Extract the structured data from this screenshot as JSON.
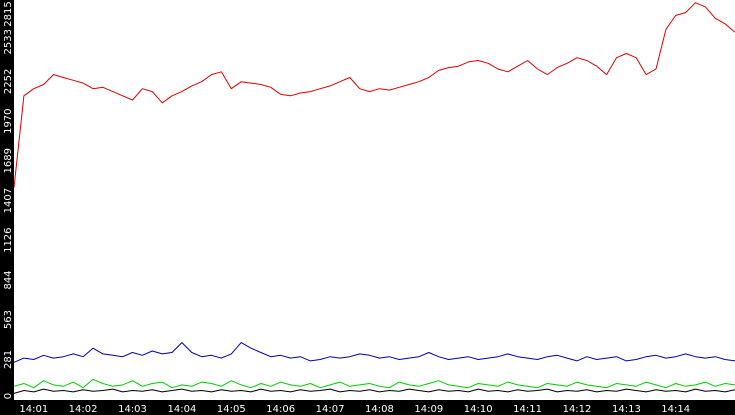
{
  "chart_data": {
    "type": "line",
    "title": "",
    "xlabel": "",
    "ylabel": "",
    "ylim": [
      0,
      2815
    ],
    "xlim": [
      0.6,
      15.2
    ],
    "grid": false,
    "legend": "none",
    "colors": {
      "background": "#ffffff",
      "axis_band": "#000000",
      "tick_text": "#ffffff"
    },
    "x_ticks": [
      "14:01",
      "14:02",
      "14:03",
      "14:04",
      "14:05",
      "14:06",
      "14:07",
      "14:08",
      "14:09",
      "14:10",
      "14:11",
      "14:12",
      "14:13",
      "14:14"
    ],
    "y_ticks": [
      "0",
      "281",
      "563",
      "844",
      "1126",
      "1407",
      "1689",
      "1970",
      "2252",
      "2533",
      "2815"
    ],
    "y_tick_values": [
      0,
      281,
      563,
      844,
      1126,
      1407,
      1689,
      1970,
      2252,
      2533,
      2815
    ],
    "series": [
      {
        "color": "#dd0000",
        "x": [
          0.6,
          0.8,
          1.0,
          1.2,
          1.4,
          1.6,
          1.8,
          2.0,
          2.2,
          2.4,
          2.6,
          2.8,
          3.0,
          3.2,
          3.4,
          3.6,
          3.8,
          4.0,
          4.2,
          4.4,
          4.6,
          4.8,
          5.0,
          5.2,
          5.4,
          5.6,
          5.8,
          6.0,
          6.2,
          6.4,
          6.6,
          6.8,
          7.0,
          7.2,
          7.4,
          7.6,
          7.8,
          8.0,
          8.2,
          8.4,
          8.6,
          8.8,
          9.0,
          9.2,
          9.4,
          9.6,
          9.8,
          10.0,
          10.2,
          10.4,
          10.6,
          10.8,
          11.0,
          11.2,
          11.4,
          11.6,
          11.8,
          12.0,
          12.2,
          12.4,
          12.6,
          12.8,
          13.0,
          13.2,
          13.4,
          13.6,
          13.8,
          14.0,
          14.2,
          14.4,
          14.6,
          14.8,
          15.0,
          15.2
        ],
        "values": [
          1500,
          2150,
          2200,
          2230,
          2300,
          2280,
          2260,
          2240,
          2200,
          2210,
          2180,
          2150,
          2120,
          2200,
          2180,
          2100,
          2150,
          2180,
          2220,
          2250,
          2300,
          2320,
          2200,
          2250,
          2240,
          2230,
          2210,
          2160,
          2150,
          2170,
          2180,
          2200,
          2220,
          2250,
          2280,
          2200,
          2180,
          2200,
          2190,
          2210,
          2230,
          2250,
          2280,
          2330,
          2350,
          2360,
          2390,
          2400,
          2380,
          2340,
          2320,
          2360,
          2400,
          2340,
          2300,
          2350,
          2380,
          2420,
          2400,
          2360,
          2300,
          2420,
          2450,
          2420,
          2300,
          2340,
          2620,
          2720,
          2740,
          2810,
          2780,
          2700,
          2660,
          2600
        ]
      },
      {
        "color": "#0000aa",
        "x": [
          0.6,
          0.8,
          1.0,
          1.2,
          1.4,
          1.6,
          1.8,
          2.0,
          2.2,
          2.4,
          2.6,
          2.8,
          3.0,
          3.2,
          3.4,
          3.6,
          3.8,
          4.0,
          4.2,
          4.4,
          4.6,
          4.8,
          5.0,
          5.2,
          5.4,
          5.6,
          5.8,
          6.0,
          6.2,
          6.4,
          6.6,
          6.8,
          7.0,
          7.2,
          7.4,
          7.6,
          7.8,
          8.0,
          8.2,
          8.4,
          8.6,
          8.8,
          9.0,
          9.2,
          9.4,
          9.6,
          9.8,
          10.0,
          10.2,
          10.4,
          10.6,
          10.8,
          11.0,
          11.2,
          11.4,
          11.6,
          11.8,
          12.0,
          12.2,
          12.4,
          12.6,
          12.8,
          13.0,
          13.2,
          13.4,
          13.6,
          13.8,
          14.0,
          14.2,
          14.4,
          14.6,
          14.8,
          15.0,
          15.2
        ],
        "values": [
          260,
          290,
          280,
          310,
          290,
          300,
          320,
          300,
          360,
          320,
          310,
          300,
          330,
          310,
          340,
          320,
          330,
          400,
          330,
          300,
          310,
          290,
          320,
          400,
          360,
          330,
          300,
          310,
          290,
          300,
          270,
          280,
          300,
          290,
          300,
          320,
          310,
          290,
          300,
          280,
          290,
          300,
          330,
          300,
          280,
          290,
          300,
          280,
          290,
          300,
          320,
          300,
          290,
          280,
          300,
          310,
          290,
          270,
          300,
          280,
          290,
          300,
          270,
          280,
          300,
          310,
          290,
          300,
          320,
          300,
          290,
          300,
          280,
          270
        ]
      },
      {
        "color": "#00cc00",
        "x": [
          0.6,
          0.8,
          1.0,
          1.2,
          1.4,
          1.6,
          1.8,
          2.0,
          2.2,
          2.4,
          2.6,
          2.8,
          3.0,
          3.2,
          3.4,
          3.6,
          3.8,
          4.0,
          4.2,
          4.4,
          4.6,
          4.8,
          5.0,
          5.2,
          5.4,
          5.6,
          5.8,
          6.0,
          6.2,
          6.4,
          6.6,
          6.8,
          7.0,
          7.2,
          7.4,
          7.6,
          7.8,
          8.0,
          8.2,
          8.4,
          8.6,
          8.8,
          9.0,
          9.2,
          9.4,
          9.6,
          9.8,
          10.0,
          10.2,
          10.4,
          10.6,
          10.8,
          11.0,
          11.2,
          11.4,
          11.6,
          11.8,
          12.0,
          12.2,
          12.4,
          12.6,
          12.8,
          13.0,
          13.2,
          13.4,
          13.6,
          13.8,
          14.0,
          14.2,
          14.4,
          14.6,
          14.8,
          15.0,
          15.2
        ],
        "values": [
          90,
          110,
          80,
          130,
          100,
          90,
          120,
          80,
          140,
          110,
          90,
          100,
          130,
          90,
          110,
          120,
          80,
          100,
          90,
          120,
          110,
          90,
          130,
          100,
          80,
          110,
          90,
          120,
          100,
          90,
          110,
          80,
          100,
          120,
          90,
          100,
          110,
          90,
          80,
          120,
          100,
          90,
          110,
          130,
          100,
          90,
          80,
          110,
          100,
          90,
          120,
          100,
          90,
          80,
          110,
          100,
          90,
          120,
          100,
          90,
          80,
          110,
          100,
          90,
          120,
          100,
          80,
          110,
          90,
          100,
          120,
          90,
          110,
          100
        ]
      },
      {
        "color": "#000000",
        "x": [
          0.6,
          0.8,
          1.0,
          1.2,
          1.4,
          1.6,
          1.8,
          2.0,
          2.2,
          2.4,
          2.6,
          2.8,
          3.0,
          3.2,
          3.4,
          3.6,
          3.8,
          4.0,
          4.2,
          4.4,
          4.6,
          4.8,
          5.0,
          5.2,
          5.4,
          5.6,
          5.8,
          6.0,
          6.2,
          6.4,
          6.6,
          6.8,
          7.0,
          7.2,
          7.4,
          7.6,
          7.8,
          8.0,
          8.2,
          8.4,
          8.6,
          8.8,
          9.0,
          9.2,
          9.4,
          9.6,
          9.8,
          10.0,
          10.2,
          10.4,
          10.6,
          10.8,
          11.0,
          11.2,
          11.4,
          11.6,
          11.8,
          12.0,
          12.2,
          12.4,
          12.6,
          12.8,
          13.0,
          13.2,
          13.4,
          13.6,
          13.8,
          14.0,
          14.2,
          14.4,
          14.6,
          14.8,
          15.0,
          15.2
        ],
        "values": [
          40,
          60,
          50,
          70,
          55,
          60,
          50,
          65,
          55,
          60,
          70,
          50,
          60,
          55,
          65,
          50,
          60,
          70,
          55,
          60,
          50,
          65,
          55,
          60,
          50,
          70,
          55,
          60,
          50,
          65,
          55,
          60,
          70,
          50,
          60,
          55,
          65,
          50,
          60,
          55,
          70,
          60,
          50,
          65,
          55,
          60,
          50,
          70,
          55,
          60,
          50,
          65,
          55,
          60,
          70,
          50,
          60,
          55,
          65,
          50,
          60,
          55,
          70,
          60,
          50,
          65,
          55,
          60,
          50,
          70,
          55,
          60,
          50,
          65
        ]
      }
    ]
  }
}
